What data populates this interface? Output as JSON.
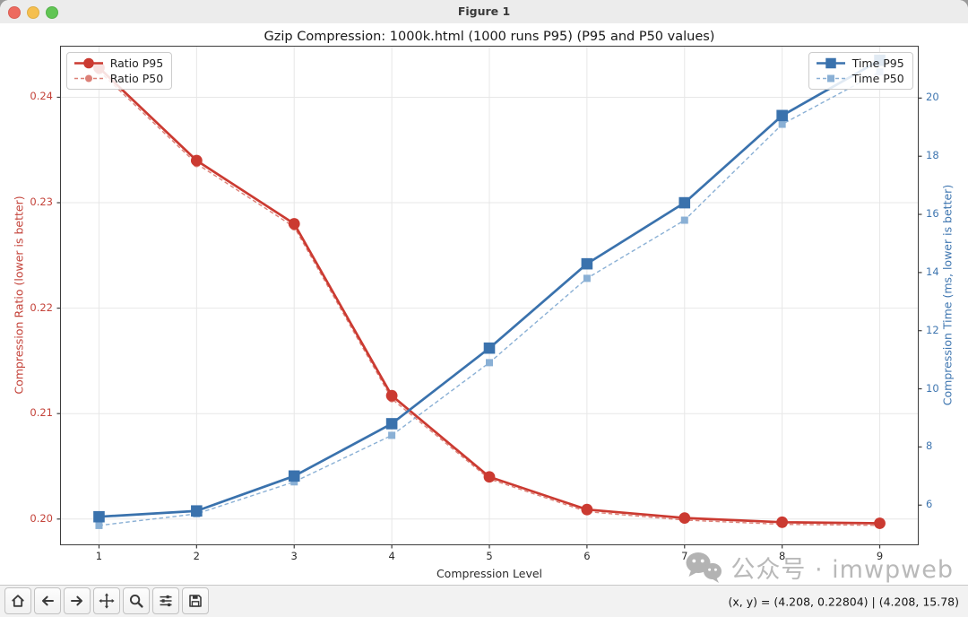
{
  "window": {
    "title": "Figure 1"
  },
  "chart_data": {
    "type": "line",
    "title": "Gzip Compression: 1000k.html (1000 runs P95) (P95 and P50 values)",
    "xlabel": "Compression Level",
    "ylabel_left": "Compression Ratio (lower is better)",
    "ylabel_right": "Compression Time (ms, lower is better)",
    "x": [
      1,
      2,
      3,
      4,
      5,
      6,
      7,
      8,
      9
    ],
    "xticks": [
      "1",
      "2",
      "3",
      "4",
      "5",
      "6",
      "7",
      "8",
      "9"
    ],
    "xlim": [
      0.61,
      9.39
    ],
    "grid": true,
    "left_axis": {
      "ticks": [
        "0.20",
        "0.21",
        "0.22",
        "0.23",
        "0.24"
      ],
      "tick_values": [
        0.2,
        0.21,
        0.22,
        0.23,
        0.24
      ],
      "lim": [
        0.1976,
        0.2448
      ],
      "color": "#c4433a"
    },
    "right_axis": {
      "ticks": [
        "6",
        "8",
        "10",
        "12",
        "14",
        "16",
        "18",
        "20"
      ],
      "tick_values": [
        6,
        8,
        10,
        12,
        14,
        16,
        18,
        20
      ],
      "lim": [
        4.65,
        21.77
      ],
      "color": "#3f76b0"
    },
    "series": [
      {
        "name": "Ratio P50",
        "axis": "left",
        "style": "dashed",
        "marker": "circle-small",
        "color": "#dc8077",
        "values": [
          0.2425,
          0.2337,
          0.2277,
          0.2114,
          0.2038,
          0.2007,
          0.1999,
          0.1995,
          0.1994
        ]
      },
      {
        "name": "Time P50",
        "axis": "right",
        "style": "dashed",
        "marker": "square-small",
        "color": "#8ab0d5",
        "values": [
          5.3,
          5.7,
          6.8,
          8.4,
          10.9,
          13.8,
          15.8,
          19.1,
          20.9
        ]
      },
      {
        "name": "Ratio P95",
        "axis": "left",
        "style": "solid",
        "marker": "circle",
        "color": "#cb3a31",
        "values": [
          0.2428,
          0.234,
          0.228,
          0.2117,
          0.204,
          0.2009,
          0.2001,
          0.1997,
          0.1996
        ]
      },
      {
        "name": "Time P95",
        "axis": "right",
        "style": "solid",
        "marker": "square",
        "color": "#3a72ad",
        "values": [
          5.6,
          5.8,
          7.0,
          8.8,
          11.4,
          14.3,
          16.4,
          19.4,
          21.3
        ]
      }
    ],
    "legend_left": [
      "Ratio P95",
      "Ratio P50"
    ],
    "legend_right": [
      "Time P95",
      "Time P50"
    ]
  },
  "toolbar": {
    "buttons": [
      "home",
      "back",
      "forward",
      "pan",
      "zoom",
      "configure-subplots",
      "save"
    ],
    "status": "(x, y) = (4.208, 0.22804) | (4.208, 15.78)"
  },
  "watermark": {
    "text": "公众号 · imwpweb"
  }
}
